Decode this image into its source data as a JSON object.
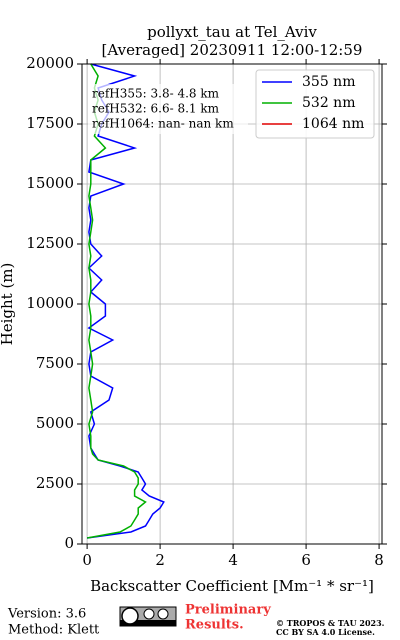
{
  "chart_data": {
    "type": "line",
    "title": "pollyxt_tau at Tel_Aviv",
    "subtitle": "[Averaged] 20230911 12:00-12:59",
    "x_label": "Backscatter Coefficient [Mm⁻¹ * sr⁻¹]",
    "y_label": "Height (m)",
    "annotations": [
      "refH355:  3.8- 4.8 km",
      "refH532:  6.6- 8.1 km",
      "refH1064:  nan- nan km"
    ],
    "heights": [
      250,
      500,
      750,
      1000,
      1250,
      1500,
      1750,
      2000,
      2250,
      2500,
      2750,
      3000,
      3250,
      3500,
      3750,
      4000,
      4500,
      5000,
      5500,
      6000,
      6500,
      7000,
      7500,
      8000,
      8500,
      9000,
      9500,
      10000,
      10500,
      11000,
      11500,
      12000,
      12500,
      13000,
      13500,
      14000,
      14500,
      15000,
      15500,
      16000,
      16500,
      17000,
      17500,
      18000,
      18500,
      19000,
      19500,
      20000
    ],
    "series": [
      {
        "name": "355 nm",
        "color": "#0000ff",
        "values": [
          0,
          1.2,
          1.6,
          1.7,
          1.8,
          2.0,
          2.1,
          1.7,
          1.5,
          1.6,
          1.5,
          1.4,
          0.9,
          0.3,
          0.2,
          0.1,
          0.05,
          0.2,
          0.1,
          0.6,
          0.7,
          0.1,
          0.05,
          0.1,
          0.7,
          0.05,
          0.5,
          0.5,
          0.1,
          0.4,
          0.05,
          0.4,
          0.1,
          0.05,
          0.1,
          0.05,
          0.1,
          1.0,
          0.05,
          0.1,
          1.3,
          0.3,
          0.4,
          0.6,
          0.4,
          0.3,
          1.3,
          0.1
        ]
      },
      {
        "name": "532 nm",
        "color": "#00b000",
        "values": [
          0,
          0.9,
          1.2,
          1.3,
          1.4,
          1.4,
          1.6,
          1.3,
          1.3,
          1.4,
          1.4,
          1.3,
          1.0,
          0.3,
          0.15,
          0.1,
          0.1,
          0.05,
          0.15,
          0.1,
          0.05,
          0.1,
          0.15,
          0.1,
          0.05,
          0.1,
          0.1,
          0.05,
          0.1,
          0.1,
          0.05,
          0.1,
          0.05,
          0.1,
          0.15,
          0.1,
          0.05,
          0.1,
          0.1,
          0.1,
          0.5,
          0.2,
          0.3,
          0.2,
          0.3,
          0.2,
          0.3,
          0.1
        ]
      },
      {
        "name": "1064 nm",
        "color": "#e00000",
        "values": [
          null,
          null,
          null,
          null,
          null,
          null,
          null,
          null,
          null,
          null,
          null,
          null,
          null,
          null,
          null,
          null,
          null,
          null,
          null,
          null,
          null,
          null,
          null,
          null,
          null,
          null,
          null,
          null,
          null,
          null,
          null,
          null,
          null,
          null,
          null,
          null,
          null,
          null,
          null,
          null,
          null,
          null,
          null,
          null,
          null,
          null,
          null,
          null
        ]
      }
    ],
    "xlim": [
      -0.14,
      8.08
    ],
    "xticks": [
      0,
      2,
      4,
      6,
      8
    ],
    "ylim": [
      0,
      20000
    ],
    "yticks": [
      0,
      2500,
      5000,
      7500,
      10000,
      12500,
      15000,
      17500,
      20000
    ],
    "grid": true,
    "legend": "upper right"
  },
  "footer": {
    "version": "Version: 3.6",
    "method": "Method: Klett",
    "preliminary": [
      "Preliminary",
      "Results."
    ],
    "copyright": [
      "© TROPOS & TAU 2023.",
      "CC BY SA 4.0 License."
    ]
  }
}
